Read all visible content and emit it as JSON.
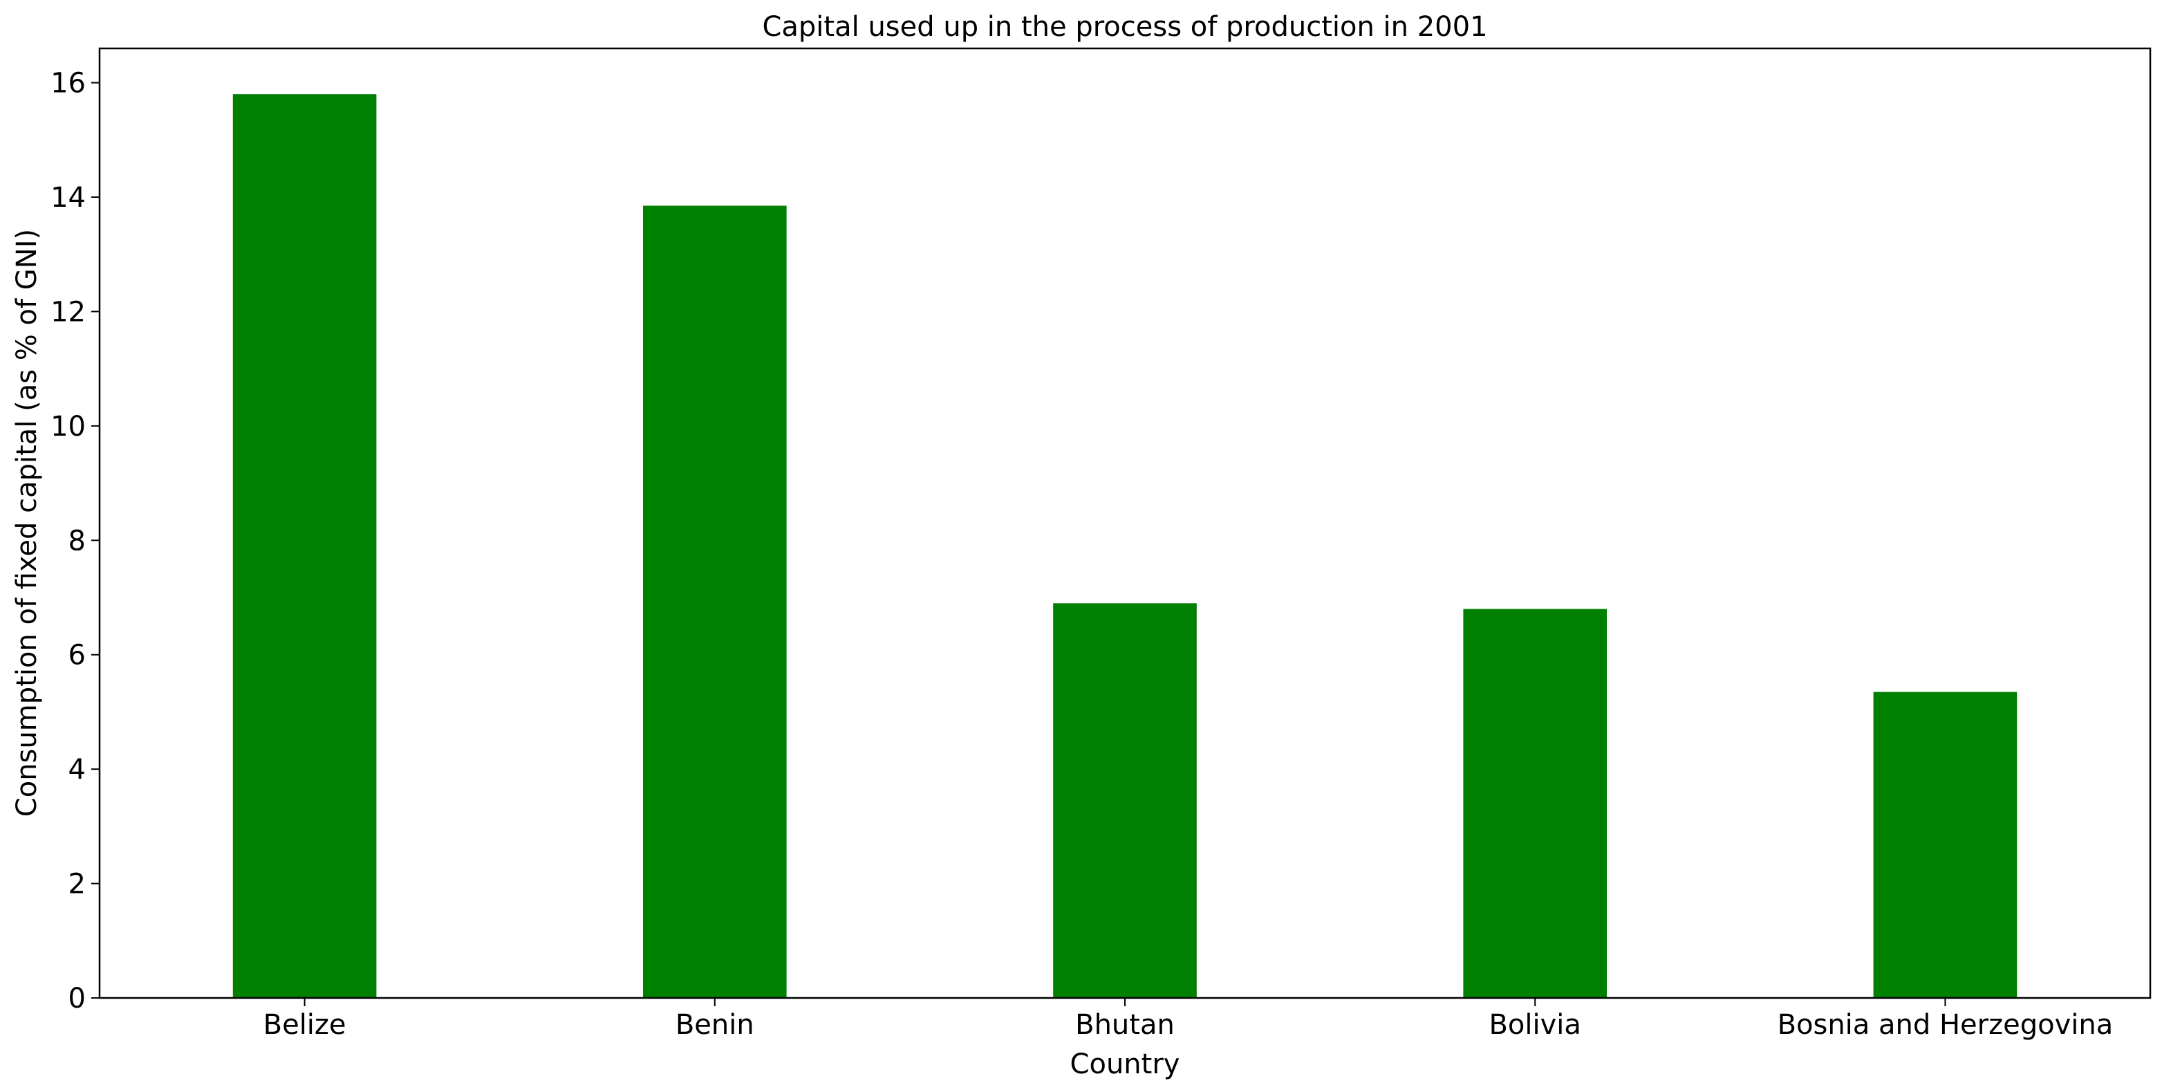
{
  "chart_data": {
    "type": "bar",
    "title": "Capital used up in the process of production in 2001",
    "xlabel": "Country",
    "ylabel": "Consumption of fixed capital (as % of GNI)",
    "categories": [
      "Belize",
      "Benin",
      "Bhutan",
      "Bolivia",
      "Bosnia and Herzegovina"
    ],
    "values": [
      15.8,
      13.85,
      6.9,
      6.8,
      5.35
    ],
    "ylim": [
      0,
      16.6
    ],
    "yticks": [
      "0",
      "2",
      "4",
      "6",
      "8",
      "10",
      "12",
      "14",
      "16"
    ],
    "bar_color": "#008000",
    "grid": false,
    "legend": false
  }
}
